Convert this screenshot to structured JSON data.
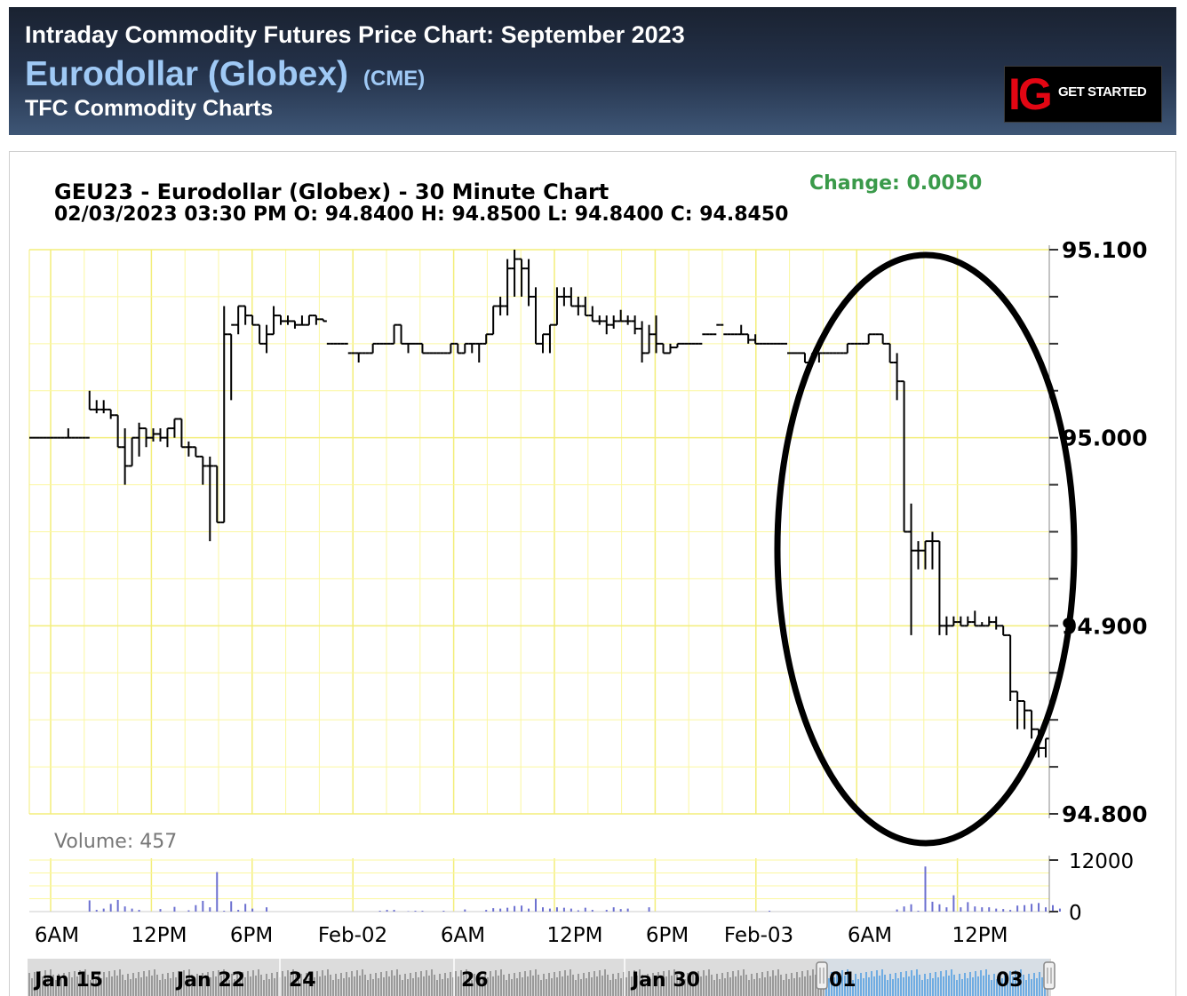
{
  "header": {
    "title": "Intraday Commodity Futures Price Chart: September 2023",
    "contract_name": "Eurodollar (Globex)",
    "exchange": "(CME)",
    "site_name": "TFC Commodity Charts"
  },
  "ad": {
    "logo": "IG",
    "cta": "GET STARTED",
    "logo_color": "#e30613"
  },
  "chart_data": {
    "type": "ohlc",
    "title": "GEU23 - Eurodollar (Globex) - 30 Minute Chart",
    "subtitle": "02/03/2023 03:30 PM O: 94.8400 H: 94.8500 L: 94.8400 C: 94.8450",
    "change_label": "Change: 0.0050",
    "change_color": "#3a9a4a",
    "y_ticks": [
      "95.100",
      "95.000",
      "94.900",
      "94.800"
    ],
    "ylim": [
      94.8,
      95.1
    ],
    "x_ticks": [
      "6AM",
      "12PM",
      "6PM",
      "Feb-02",
      "6AM",
      "12PM",
      "6PM",
      "Feb-03",
      "6AM",
      "12PM"
    ],
    "grid": true,
    "grid_color": "#fbf7a0",
    "series_color": "#000000",
    "highlight": "ellipse",
    "bars": [
      [
        95.0,
        95.0,
        95.0,
        95.0
      ],
      [
        95.0,
        95.0,
        95.0,
        95.0
      ],
      [
        95.0,
        95.0,
        95.0,
        95.0
      ],
      [
        95.0,
        95.0,
        95.0,
        95.0
      ],
      [
        95.0,
        95.0,
        95.0,
        95.0
      ],
      [
        95.0,
        95.005,
        95.0,
        95.0
      ],
      [
        95.0,
        95.0,
        95.0,
        95.0
      ],
      [
        95.0,
        95.0,
        95.0,
        95.0
      ],
      [
        95.0,
        95.025,
        95.015,
        95.015
      ],
      [
        95.015,
        95.02,
        95.013,
        95.015
      ],
      [
        95.015,
        95.02,
        95.013,
        95.015
      ],
      [
        95.015,
        95.015,
        95.01,
        95.012
      ],
      [
        95.012,
        95.012,
        94.995,
        94.995
      ],
      [
        94.995,
        95.005,
        94.975,
        94.985
      ],
      [
        94.985,
        95.0,
        94.985,
        95.0
      ],
      [
        95.0,
        95.008,
        94.99,
        95.005
      ],
      [
        95.005,
        95.005,
        94.995,
        95.0
      ],
      [
        95.0,
        95.005,
        94.998,
        95.002
      ],
      [
        95.002,
        95.005,
        94.998,
        95.0
      ],
      [
        95.0,
        95.005,
        94.995,
        95.005
      ],
      [
        95.005,
        95.01,
        95.0,
        95.01
      ],
      [
        95.01,
        95.01,
        94.995,
        94.995
      ],
      [
        94.995,
        94.998,
        94.99,
        94.995
      ],
      [
        94.995,
        94.995,
        94.99,
        94.99
      ],
      [
        94.99,
        94.99,
        94.975,
        94.985
      ],
      [
        94.985,
        94.99,
        94.945,
        94.985
      ],
      [
        94.985,
        94.985,
        94.955,
        94.955
      ],
      [
        94.955,
        95.07,
        94.955,
        95.055
      ],
      [
        95.055,
        95.055,
        95.02,
        95.06
      ],
      [
        95.06,
        95.07,
        95.055,
        95.07
      ],
      [
        95.07,
        95.07,
        95.06,
        95.065
      ],
      [
        95.065,
        95.065,
        95.06,
        95.06
      ],
      [
        95.06,
        95.06,
        95.05,
        95.05
      ],
      [
        95.05,
        95.06,
        95.045,
        95.055
      ],
      [
        95.055,
        95.07,
        95.055,
        95.065
      ],
      [
        95.065,
        95.065,
        95.06,
        95.062
      ],
      [
        95.062,
        95.065,
        95.06,
        95.062
      ],
      [
        95.062,
        95.062,
        95.058,
        95.06
      ],
      [
        95.06,
        95.065,
        95.06,
        95.06
      ],
      [
        95.06,
        95.065,
        95.06,
        95.065
      ],
      [
        95.065,
        95.065,
        95.06,
        95.063
      ],
      [
        95.063,
        95.063,
        95.062,
        95.062
      ],
      [
        95.05,
        95.05,
        95.05,
        95.05
      ],
      [
        95.05,
        95.05,
        95.05,
        95.05
      ],
      [
        95.05,
        95.05,
        95.05,
        95.05
      ],
      [
        95.045,
        95.045,
        95.045,
        95.045
      ],
      [
        95.045,
        95.045,
        95.04,
        95.045
      ],
      [
        95.045,
        95.045,
        95.045,
        95.045
      ],
      [
        95.045,
        95.05,
        95.045,
        95.05
      ],
      [
        95.05,
        95.05,
        95.05,
        95.05
      ],
      [
        95.05,
        95.05,
        95.05,
        95.05
      ],
      [
        95.05,
        95.06,
        95.05,
        95.06
      ],
      [
        95.06,
        95.06,
        95.05,
        95.05
      ],
      [
        95.05,
        95.05,
        95.045,
        95.05
      ],
      [
        95.05,
        95.05,
        95.05,
        95.05
      ],
      [
        95.05,
        95.05,
        95.045,
        95.045
      ],
      [
        95.045,
        95.045,
        95.045,
        95.045
      ],
      [
        95.045,
        95.045,
        95.045,
        95.045
      ],
      [
        95.045,
        95.045,
        95.045,
        95.045
      ],
      [
        95.045,
        95.05,
        95.045,
        95.05
      ],
      [
        95.05,
        95.05,
        95.045,
        95.045
      ],
      [
        95.045,
        95.05,
        95.045,
        95.05
      ],
      [
        95.05,
        95.05,
        95.045,
        95.05
      ],
      [
        95.05,
        95.05,
        95.04,
        95.05
      ],
      [
        95.05,
        95.055,
        95.05,
        95.055
      ],
      [
        95.055,
        95.07,
        95.055,
        95.07
      ],
      [
        95.07,
        95.075,
        95.065,
        95.07
      ],
      [
        95.07,
        95.095,
        95.065,
        95.09
      ],
      [
        95.09,
        95.1,
        95.075,
        95.095
      ],
      [
        95.095,
        95.095,
        95.075,
        95.09
      ],
      [
        95.09,
        95.095,
        95.07,
        95.075
      ],
      [
        95.075,
        95.08,
        95.05,
        95.05
      ],
      [
        95.05,
        95.055,
        95.045,
        95.055
      ],
      [
        95.055,
        95.06,
        95.045,
        95.06
      ],
      [
        95.06,
        95.08,
        95.06,
        95.075
      ],
      [
        95.075,
        95.08,
        95.07,
        95.075
      ],
      [
        95.075,
        95.08,
        95.07,
        95.07
      ],
      [
        95.07,
        95.075,
        95.065,
        95.07
      ],
      [
        95.07,
        95.075,
        95.065,
        95.065
      ],
      [
        95.065,
        95.07,
        95.062,
        95.062
      ],
      [
        95.062,
        95.065,
        95.06,
        95.062
      ],
      [
        95.062,
        95.065,
        95.055,
        95.06
      ],
      [
        95.06,
        95.065,
        95.058,
        95.062
      ],
      [
        95.062,
        95.068,
        95.062,
        95.062
      ],
      [
        95.062,
        95.065,
        95.06,
        95.062
      ],
      [
        95.062,
        95.065,
        95.055,
        95.058
      ],
      [
        95.058,
        95.062,
        95.04,
        95.045
      ],
      [
        95.045,
        95.06,
        95.045,
        95.055
      ],
      [
        95.055,
        95.065,
        95.045,
        95.05
      ],
      [
        95.05,
        95.05,
        95.045,
        95.045
      ],
      [
        95.045,
        95.05,
        95.045,
        95.048
      ],
      [
        95.048,
        95.05,
        95.048,
        95.05
      ],
      [
        95.05,
        95.05,
        95.05,
        95.05
      ],
      [
        95.05,
        95.05,
        95.05,
        95.05
      ],
      [
        95.05,
        95.05,
        95.05,
        95.05
      ],
      [
        95.055,
        95.055,
        95.055,
        95.055
      ],
      [
        95.055,
        95.055,
        95.055,
        95.055
      ],
      [
        95.06,
        95.06,
        95.06,
        95.06
      ],
      [
        95.055,
        95.055,
        95.055,
        95.055
      ],
      [
        95.055,
        95.055,
        95.055,
        95.055
      ],
      [
        95.055,
        95.06,
        95.055,
        95.055
      ],
      [
        95.055,
        95.055,
        95.05,
        95.052
      ],
      [
        95.052,
        95.055,
        95.05,
        95.05
      ],
      [
        95.05,
        95.05,
        95.05,
        95.05
      ],
      [
        95.05,
        95.05,
        95.05,
        95.05
      ],
      [
        95.05,
        95.05,
        95.05,
        95.05
      ],
      [
        95.05,
        95.05,
        95.05,
        95.05
      ],
      [
        95.045,
        95.045,
        95.045,
        95.045
      ],
      [
        95.045,
        95.045,
        95.045,
        95.045
      ],
      [
        95.045,
        95.045,
        95.04,
        95.04
      ],
      [
        95.04,
        95.045,
        95.04,
        95.045
      ],
      [
        95.045,
        95.045,
        95.04,
        95.045
      ],
      [
        95.045,
        95.045,
        95.045,
        95.045
      ],
      [
        95.045,
        95.045,
        95.045,
        95.045
      ],
      [
        95.045,
        95.045,
        95.045,
        95.045
      ],
      [
        95.045,
        95.05,
        95.045,
        95.05
      ],
      [
        95.05,
        95.05,
        95.05,
        95.05
      ],
      [
        95.05,
        95.05,
        95.05,
        95.05
      ],
      [
        95.05,
        95.055,
        95.05,
        95.055
      ],
      [
        95.055,
        95.055,
        95.055,
        95.055
      ],
      [
        95.055,
        95.055,
        95.05,
        95.05
      ],
      [
        95.05,
        95.05,
        95.04,
        95.04
      ],
      [
        95.04,
        95.045,
        95.02,
        95.03
      ],
      [
        95.03,
        95.03,
        94.95,
        94.95
      ],
      [
        94.95,
        94.965,
        94.895,
        94.94
      ],
      [
        94.94,
        94.945,
        94.93,
        94.94
      ],
      [
        94.94,
        94.945,
        94.93,
        94.945
      ],
      [
        94.945,
        94.95,
        94.93,
        94.945
      ],
      [
        94.945,
        94.945,
        94.895,
        94.9
      ],
      [
        94.9,
        94.905,
        94.895,
        94.9
      ],
      [
        94.9,
        94.905,
        94.9,
        94.902
      ],
      [
        94.902,
        94.905,
        94.9,
        94.9
      ],
      [
        94.9,
        94.905,
        94.9,
        94.902
      ],
      [
        94.902,
        94.908,
        94.9,
        94.9
      ],
      [
        94.9,
        94.902,
        94.9,
        94.9
      ],
      [
        94.9,
        94.905,
        94.9,
        94.902
      ],
      [
        94.902,
        94.905,
        94.898,
        94.9
      ],
      [
        94.9,
        94.9,
        94.895,
        94.895
      ],
      [
        94.895,
        94.895,
        94.86,
        94.865
      ],
      [
        94.865,
        94.865,
        94.845,
        94.86
      ],
      [
        94.86,
        94.86,
        94.845,
        94.855
      ],
      [
        94.855,
        94.855,
        94.84,
        94.845
      ],
      [
        94.845,
        94.845,
        94.83,
        94.835
      ],
      [
        94.835,
        94.84,
        94.83,
        94.84
      ]
    ],
    "volume": {
      "label": "Volume: 457",
      "y_ticks": [
        "12000",
        "0"
      ],
      "ylim": [
        0,
        12000
      ],
      "bar_color": "#6b6fd0",
      "values": [
        0,
        0,
        0,
        0,
        0,
        0,
        0,
        0,
        2600,
        400,
        700,
        1800,
        2700,
        1200,
        700,
        400,
        0,
        0,
        600,
        0,
        1100,
        0,
        300,
        1500,
        2500,
        1000,
        9200,
        200,
        2400,
        400,
        1800,
        700,
        0,
        1000,
        0,
        0,
        0,
        0,
        0,
        0,
        0,
        0,
        0,
        0,
        0,
        0,
        0,
        0,
        0,
        200,
        400,
        400,
        0,
        100,
        200,
        200,
        0,
        0,
        200,
        0,
        0,
        500,
        0,
        0,
        400,
        800,
        700,
        900,
        1300,
        1400,
        700,
        3000,
        1000,
        700,
        1000,
        900,
        700,
        300,
        900,
        400,
        0,
        400,
        1000,
        600,
        700,
        0,
        0,
        1000,
        0,
        0,
        0,
        0,
        0,
        0,
        0,
        0,
        0,
        0,
        0,
        0,
        0,
        0,
        0,
        0,
        200,
        0,
        0,
        0,
        0,
        0,
        0,
        0,
        0,
        0,
        0,
        0,
        0,
        0,
        0,
        0,
        0,
        0,
        500,
        1200,
        1700,
        200,
        10500,
        2300,
        1700,
        1000,
        3800,
        1000,
        2200,
        1200,
        1000,
        1000,
        700,
        600,
        400,
        1400,
        1500,
        1800,
        2000,
        1000,
        1500,
        700
      ]
    },
    "navigator": {
      "labels": [
        "Jan 15",
        "Jan 22",
        "24",
        "26",
        "Jan 30",
        "01",
        "03"
      ],
      "fill_color": "#9a9a9a",
      "selection_color": "#3d8fd8"
    }
  }
}
